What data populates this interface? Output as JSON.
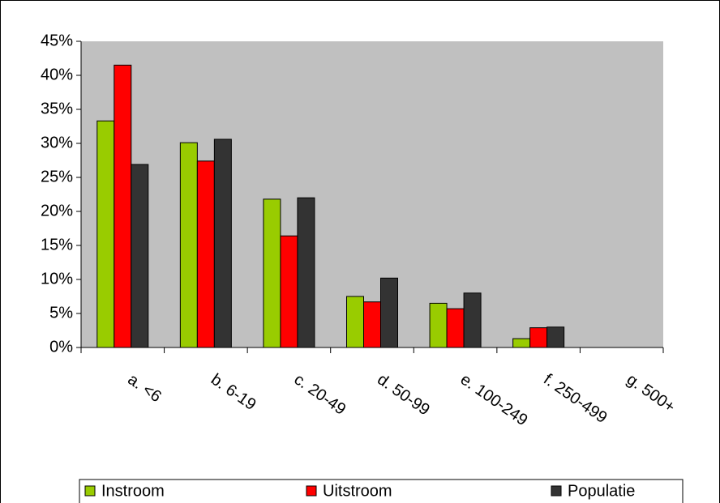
{
  "chart_data": {
    "type": "bar",
    "categories": [
      "a. <6",
      "b. 6-19",
      "c. 20-49",
      "d. 50-99",
      "e. 100-249",
      "f. 250-499",
      "g. 500+"
    ],
    "series": [
      {
        "name": "Instroom",
        "color": "#99cc00",
        "values": [
          33.3,
          30.1,
          21.8,
          7.5,
          6.5,
          1.3,
          0
        ]
      },
      {
        "name": "Uitstroom",
        "color": "#ff0000",
        "values": [
          41.5,
          27.4,
          16.4,
          6.7,
          5.7,
          2.9,
          0
        ]
      },
      {
        "name": "Populatie",
        "color": "#333333",
        "values": [
          26.9,
          30.6,
          22.0,
          10.2,
          8.0,
          3.0,
          0
        ]
      }
    ],
    "ylim": [
      0,
      45
    ],
    "yticks": [
      {
        "value": 0,
        "label": "0%"
      },
      {
        "value": 5,
        "label": "5%"
      },
      {
        "value": 10,
        "label": "10%"
      },
      {
        "value": 15,
        "label": "15%"
      },
      {
        "value": 20,
        "label": "20%"
      },
      {
        "value": 25,
        "label": "25%"
      },
      {
        "value": 30,
        "label": "30%"
      },
      {
        "value": 35,
        "label": "35%"
      },
      {
        "value": 40,
        "label": "40%"
      },
      {
        "value": 45,
        "label": "45%"
      }
    ],
    "plot_background": "#c0c0c0",
    "legend": "bottom"
  }
}
